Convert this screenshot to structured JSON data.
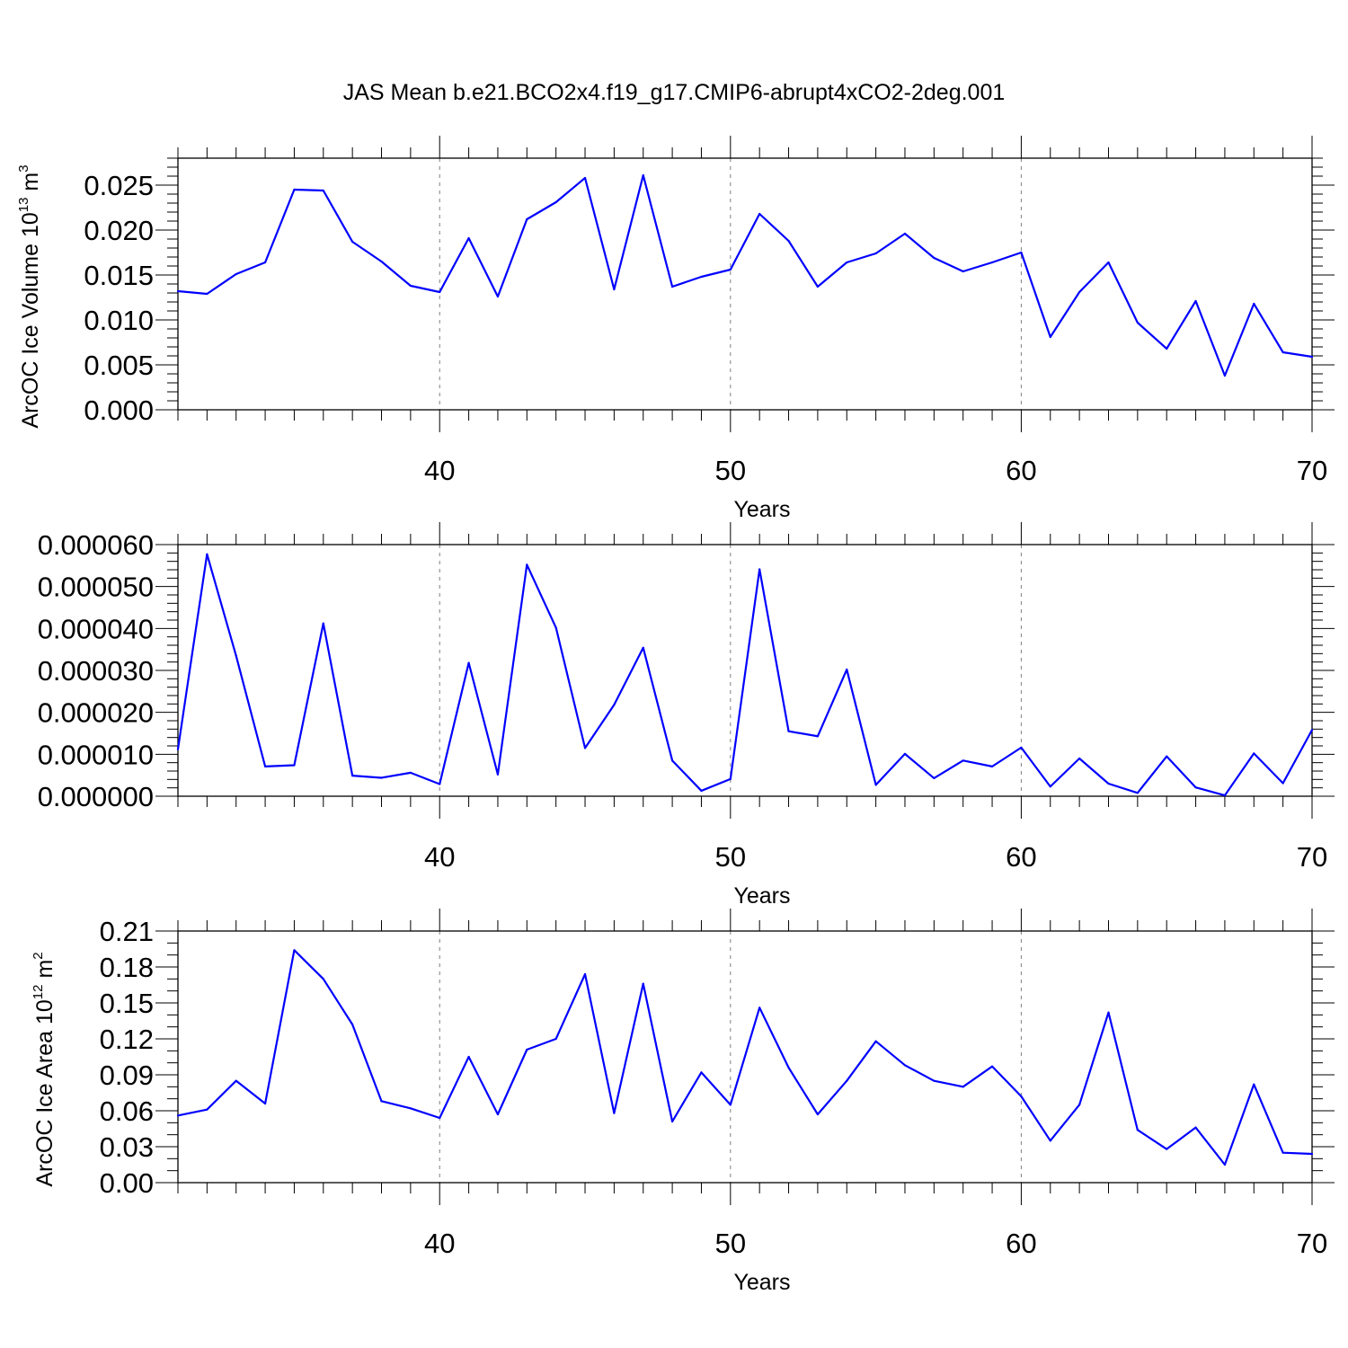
{
  "figure_title": "JAS Mean b.e21.BCO2x4.f19_g17.CMIP6-abrupt4xCO2-2deg.001",
  "colors": {
    "line": "#0000ff",
    "axis": "#000000",
    "grid": "#808080"
  },
  "chart_data": [
    {
      "type": "line",
      "title": "JAS Mean b.e21.BCO2x4.f19_g17.CMIP6-abrupt4xCO2-2deg.001",
      "xlabel": "Years",
      "ylabel_main": "ArcOC Ice Volume 10",
      "ylabel_sup": "13",
      "ylabel_unit": " m",
      "ylabel_unit_sup": "3",
      "xlim": [
        31,
        70
      ],
      "ylim": [
        0,
        0.028
      ],
      "x_ticks": [
        "40",
        "50",
        "60",
        "70"
      ],
      "y_ticks": [
        "0.000",
        "0.005",
        "0.010",
        "0.015",
        "0.020",
        "0.025"
      ],
      "y_tick_values": [
        0,
        0.005,
        0.01,
        0.015,
        0.02,
        0.025
      ],
      "y_minor_step": 0.001,
      "grid": "vertical dashed at major x ticks",
      "x": [
        31,
        32,
        33,
        34,
        35,
        36,
        37,
        38,
        39,
        40,
        41,
        42,
        43,
        44,
        45,
        46,
        47,
        48,
        49,
        50,
        51,
        52,
        53,
        54,
        55,
        56,
        57,
        58,
        59,
        60,
        61,
        62,
        63,
        64,
        65,
        66,
        67,
        68,
        69,
        70
      ],
      "values": [
        0.0132,
        0.0129,
        0.0151,
        0.0164,
        0.0245,
        0.0244,
        0.0187,
        0.0165,
        0.0138,
        0.0131,
        0.0191,
        0.0126,
        0.0212,
        0.0231,
        0.0258,
        0.0134,
        0.0261,
        0.0137,
        0.0148,
        0.0156,
        0.0218,
        0.0188,
        0.0137,
        0.0164,
        0.0174,
        0.0196,
        0.0169,
        0.0154,
        0.0164,
        0.0175,
        0.0081,
        0.0131,
        0.0164,
        0.0097,
        0.0068,
        0.0121,
        0.0038,
        0.0118,
        0.0064,
        0.0059
      ]
    },
    {
      "type": "line",
      "xlabel": "Years",
      "xlim": [
        31,
        70
      ],
      "ylim": [
        0,
        6e-05
      ],
      "x_ticks": [
        "40",
        "50",
        "60",
        "70"
      ],
      "y_ticks": [
        "0.000000",
        "0.000010",
        "0.000020",
        "0.000030",
        "0.000040",
        "0.000050",
        "0.000060"
      ],
      "y_tick_values": [
        0,
        1e-05,
        2e-05,
        3e-05,
        4e-05,
        5e-05,
        6e-05
      ],
      "y_minor_step": 2e-06,
      "grid": "vertical dashed at major x ticks",
      "x": [
        31,
        32,
        33,
        34,
        35,
        36,
        37,
        38,
        39,
        40,
        41,
        42,
        43,
        44,
        45,
        46,
        47,
        48,
        49,
        50,
        51,
        52,
        53,
        54,
        55,
        56,
        57,
        58,
        59,
        60,
        61,
        62,
        63,
        64,
        65,
        66,
        67,
        68,
        69,
        70
      ],
      "values": [
        1.12e-05,
        5.77e-05,
        3.35e-05,
        7.1e-06,
        7.4e-06,
        4.12e-05,
        4.9e-06,
        4.4e-06,
        5.6e-06,
        2.9e-06,
        3.18e-05,
        5.2e-06,
        5.52e-05,
        4.02e-05,
        1.15e-05,
        2.18e-05,
        3.54e-05,
        8.5e-06,
        1.3e-06,
        4.1e-06,
        5.41e-05,
        1.55e-05,
        1.43e-05,
        3.02e-05,
        2.7e-06,
        1.01e-05,
        4.3e-06,
        8.5e-06,
        7.1e-06,
        1.16e-05,
        2.3e-06,
        9e-06,
        3e-06,
        8e-07,
        9.5e-06,
        2.1e-06,
        2e-07,
        1.02e-05,
        3.1e-06,
        1.58e-05
      ]
    },
    {
      "type": "line",
      "xlabel": "Years",
      "ylabel_main": "ArcOC Ice Area 10",
      "ylabel_sup": "12",
      "ylabel_unit": " m",
      "ylabel_unit_sup": "2",
      "xlim": [
        31,
        70
      ],
      "ylim": [
        0,
        0.21
      ],
      "x_ticks": [
        "40",
        "50",
        "60",
        "70"
      ],
      "y_ticks": [
        "0.00",
        "0.03",
        "0.06",
        "0.09",
        "0.12",
        "0.15",
        "0.18",
        "0.21"
      ],
      "y_tick_values": [
        0,
        0.03,
        0.06,
        0.09,
        0.12,
        0.15,
        0.18,
        0.21
      ],
      "y_minor_step": 0.01,
      "grid": "vertical dashed at major x ticks",
      "x": [
        31,
        32,
        33,
        34,
        35,
        36,
        37,
        38,
        39,
        40,
        41,
        42,
        43,
        44,
        45,
        46,
        47,
        48,
        49,
        50,
        51,
        52,
        53,
        54,
        55,
        56,
        57,
        58,
        59,
        60,
        61,
        62,
        63,
        64,
        65,
        66,
        67,
        68,
        69,
        70
      ],
      "values": [
        0.056,
        0.061,
        0.085,
        0.066,
        0.194,
        0.17,
        0.132,
        0.068,
        0.062,
        0.054,
        0.105,
        0.057,
        0.111,
        0.12,
        0.174,
        0.058,
        0.166,
        0.051,
        0.092,
        0.065,
        0.146,
        0.096,
        0.057,
        0.085,
        0.118,
        0.098,
        0.085,
        0.08,
        0.097,
        0.072,
        0.035,
        0.065,
        0.142,
        0.044,
        0.028,
        0.046,
        0.015,
        0.082,
        0.025,
        0.024
      ]
    }
  ]
}
